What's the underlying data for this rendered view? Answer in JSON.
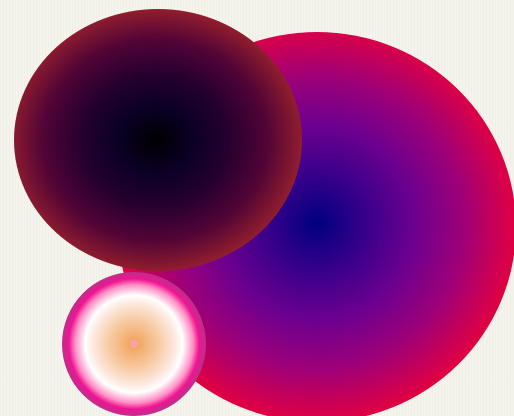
{
  "scene": {
    "background_color": "#f5f4ec",
    "blobs": [
      {
        "name": "large-radial-blob",
        "colors": [
          "#000080",
          "#6a0090",
          "#d8004a",
          "#ff0014",
          "#ff4a00"
        ]
      },
      {
        "name": "dark-radial-blob",
        "colors": [
          "#000000",
          "#24002e",
          "#8e1c2e",
          "#f58d08",
          "#ffae00"
        ]
      },
      {
        "name": "small-radial-blob",
        "colors": [
          "#f1a056",
          "#ffffff",
          "#f01493",
          "#a05a7c",
          "#d69a68"
        ]
      }
    ]
  }
}
